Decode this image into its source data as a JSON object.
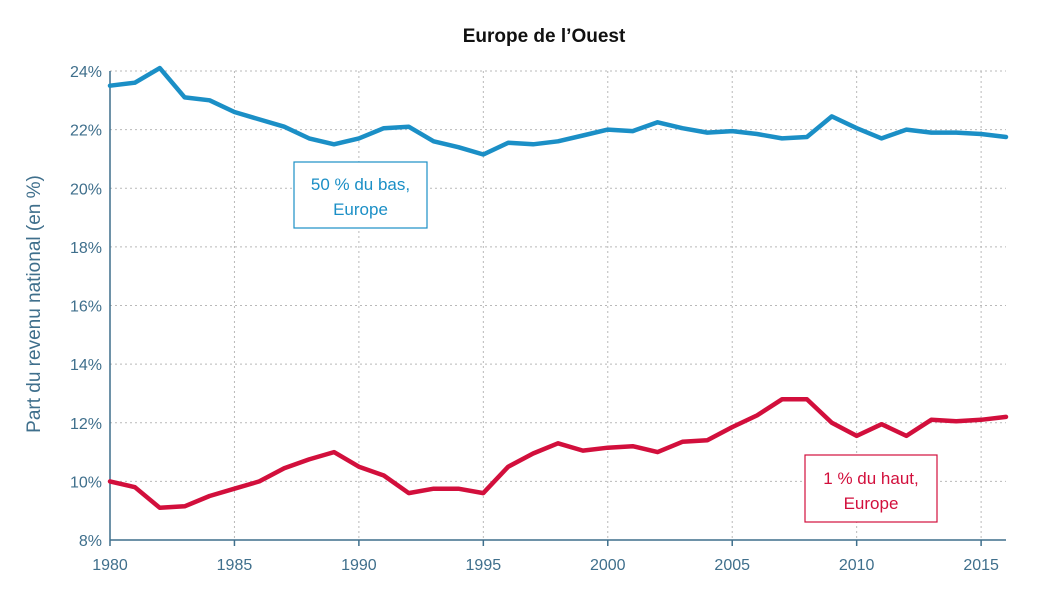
{
  "chart_data": {
    "type": "line",
    "title": "Europe de l’Ouest",
    "xlabel": "",
    "ylabel": "Part du revenu national (en %)",
    "xlim": [
      1980,
      2016
    ],
    "ylim": [
      8,
      24
    ],
    "x_ticks": [
      1980,
      1985,
      1990,
      1995,
      2000,
      2005,
      2010,
      2015
    ],
    "x_tick_labels": [
      "1980",
      "1985",
      "1990",
      "1995",
      "2000",
      "2005",
      "2010",
      "2015"
    ],
    "y_ticks": [
      8,
      10,
      12,
      14,
      16,
      18,
      20,
      22,
      24
    ],
    "y_tick_labels": [
      "8%",
      "10%",
      "12%",
      "14%",
      "16%",
      "18%",
      "20%",
      "22%",
      "24%"
    ],
    "grid": true,
    "x": [
      1980,
      1981,
      1982,
      1983,
      1984,
      1985,
      1986,
      1987,
      1988,
      1989,
      1990,
      1991,
      1992,
      1993,
      1994,
      1995,
      1996,
      1997,
      1998,
      1999,
      2000,
      2001,
      2002,
      2003,
      2004,
      2005,
      2006,
      2007,
      2008,
      2009,
      2010,
      2011,
      2012,
      2013,
      2014,
      2015,
      2016
    ],
    "series": [
      {
        "name": "50 % du bas, Europe",
        "color": "#1b8fc6",
        "values": [
          23.5,
          23.6,
          24.1,
          23.1,
          23.0,
          22.6,
          22.35,
          22.1,
          21.7,
          21.5,
          21.7,
          22.05,
          22.1,
          21.6,
          21.4,
          21.15,
          21.55,
          21.5,
          21.6,
          21.8,
          22.0,
          21.95,
          22.25,
          22.05,
          21.9,
          21.95,
          21.85,
          21.7,
          21.75,
          22.45,
          22.05,
          21.7,
          22.0,
          21.9,
          21.9,
          21.85,
          21.75
        ]
      },
      {
        "name": "1 % du haut, Europe",
        "color": "#d20f3c",
        "values": [
          10.0,
          9.8,
          9.1,
          9.15,
          9.5,
          9.75,
          10.0,
          10.45,
          10.75,
          11.0,
          10.5,
          10.2,
          9.6,
          9.75,
          9.75,
          9.6,
          10.5,
          10.95,
          11.3,
          11.05,
          11.15,
          11.2,
          11.0,
          11.35,
          11.4,
          11.85,
          12.25,
          12.8,
          12.8,
          12.0,
          11.55,
          11.95,
          11.55,
          12.1,
          12.05,
          12.1,
          12.2
        ]
      }
    ],
    "annotations": [
      {
        "lines": [
          "50 % du bas,",
          "Europe"
        ],
        "color": "#1b8fc6",
        "border": "#1b8fc6"
      },
      {
        "lines": [
          "1 % du haut,",
          "Europe"
        ],
        "color": "#d20f3c",
        "border": "#d20f3c"
      }
    ]
  }
}
